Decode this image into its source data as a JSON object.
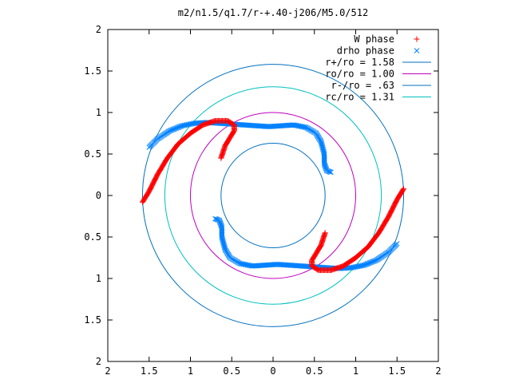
{
  "chart_data": {
    "type": "scatter",
    "title": "m2/n1.5/q1.7/r-+.40-j206/M5.0/512",
    "xlim": [
      2,
      -2
    ],
    "ylim": [
      -2,
      2
    ],
    "x_ticks": [
      2,
      1.5,
      1,
      0.5,
      0,
      0.5,
      1,
      1.5,
      2
    ],
    "y_ticks": [
      2,
      1.5,
      1,
      0.5,
      0,
      0.5,
      1,
      1.5,
      2
    ],
    "x_tick_labels": [
      "2",
      "1.5",
      "1",
      "0.5",
      "0",
      "0.5",
      "1",
      "1.5",
      "2"
    ],
    "y_tick_labels": [
      "2",
      "1.5",
      "1",
      "0.5",
      "0",
      "0.5",
      "1",
      "1.5",
      "2"
    ],
    "grid": false,
    "legend_position": "top-right",
    "series": [
      {
        "name": "W phase",
        "marker": "+",
        "color": "#ff0000"
      },
      {
        "name": "drho phase",
        "marker": "x",
        "color": "#0080ff"
      },
      {
        "name": "r+/ro = 1.58",
        "type": "circle",
        "radius": 1.58,
        "color": "#0070c0"
      },
      {
        "name": "ro/ro = 1.00",
        "type": "circle",
        "radius": 1.0,
        "color": "#c000c0"
      },
      {
        "name": "r-/ro = .63",
        "type": "circle",
        "radius": 0.63,
        "color": "#0070c0"
      },
      {
        "name": "rc/ro = 1.31",
        "type": "circle",
        "radius": 1.31,
        "color": "#00c0c0"
      }
    ],
    "spiral_arms": {
      "w_phase": [
        [
          [
            1.58,
            0.08
          ],
          [
            1.5,
            -0.05
          ],
          [
            1.4,
            -0.25
          ],
          [
            1.28,
            -0.45
          ],
          [
            1.15,
            -0.62
          ],
          [
            1.0,
            -0.75
          ],
          [
            0.85,
            -0.85
          ],
          [
            0.7,
            -0.9
          ],
          [
            0.55,
            -0.9
          ],
          [
            0.47,
            -0.85
          ],
          [
            0.47,
            -0.78
          ],
          [
            0.52,
            -0.7
          ],
          [
            0.58,
            -0.6
          ],
          [
            0.63,
            -0.45
          ]
        ],
        [
          [
            -1.58,
            -0.08
          ],
          [
            -1.5,
            0.05
          ],
          [
            -1.4,
            0.25
          ],
          [
            -1.28,
            0.45
          ],
          [
            -1.15,
            0.62
          ],
          [
            -1.0,
            0.75
          ],
          [
            -0.85,
            0.85
          ],
          [
            -0.7,
            0.9
          ],
          [
            -0.55,
            0.9
          ],
          [
            -0.47,
            0.85
          ],
          [
            -0.47,
            0.78
          ],
          [
            -0.52,
            0.7
          ],
          [
            -0.58,
            0.6
          ],
          [
            -0.63,
            0.45
          ]
        ]
      ],
      "drho_phase": [
        [
          [
            -1.5,
            0.58
          ],
          [
            -1.4,
            0.68
          ],
          [
            -1.25,
            0.78
          ],
          [
            -1.1,
            0.84
          ],
          [
            -0.95,
            0.87
          ],
          [
            -0.8,
            0.88
          ],
          [
            -0.65,
            0.87
          ],
          [
            -0.5,
            0.86
          ],
          [
            -0.35,
            0.85
          ],
          [
            -0.2,
            0.84
          ],
          [
            -0.05,
            0.83
          ],
          [
            0.1,
            0.84
          ],
          [
            0.25,
            0.85
          ],
          [
            0.4,
            0.82
          ],
          [
            0.52,
            0.75
          ],
          [
            0.58,
            0.65
          ],
          [
            0.62,
            0.5
          ],
          [
            0.62,
            0.38
          ],
          [
            0.65,
            0.3
          ],
          [
            0.7,
            0.28
          ]
        ],
        [
          [
            1.5,
            -0.58
          ],
          [
            1.4,
            -0.68
          ],
          [
            1.25,
            -0.78
          ],
          [
            1.1,
            -0.84
          ],
          [
            0.95,
            -0.87
          ],
          [
            0.8,
            -0.88
          ],
          [
            0.65,
            -0.87
          ],
          [
            0.5,
            -0.86
          ],
          [
            0.35,
            -0.85
          ],
          [
            0.2,
            -0.84
          ],
          [
            0.05,
            -0.83
          ],
          [
            -0.1,
            -0.84
          ],
          [
            -0.25,
            -0.85
          ],
          [
            -0.4,
            -0.82
          ],
          [
            -0.52,
            -0.75
          ],
          [
            -0.58,
            -0.65
          ],
          [
            -0.62,
            -0.5
          ],
          [
            -0.62,
            -0.38
          ],
          [
            -0.65,
            -0.3
          ],
          [
            -0.7,
            -0.28
          ]
        ]
      ]
    }
  }
}
